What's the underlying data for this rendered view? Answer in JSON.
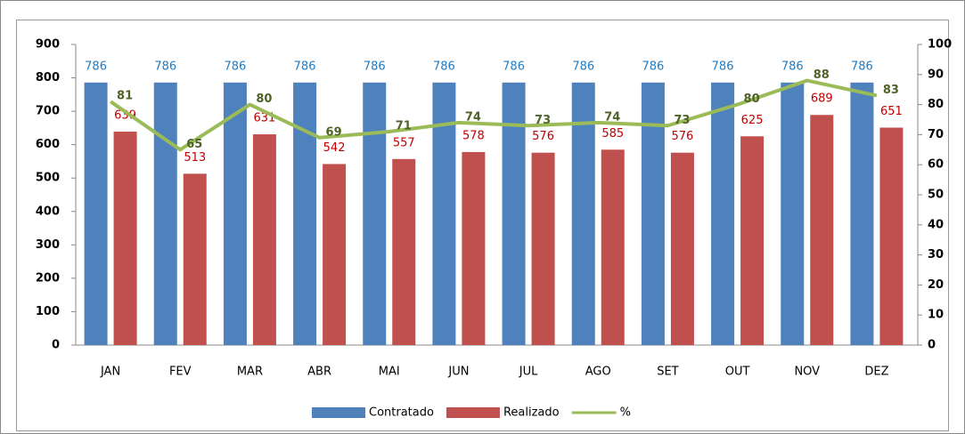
{
  "chart_data": {
    "type": "bar",
    "categories": [
      "JAN",
      "FEV",
      "MAR",
      "ABR",
      "MAI",
      "JUN",
      "JUL",
      "AGO",
      "SET",
      "OUT",
      "NOV",
      "DEZ"
    ],
    "series": [
      {
        "name": "Contratado",
        "color": "#4f81bd",
        "values": [
          786,
          786,
          786,
          786,
          786,
          786,
          786,
          786,
          786,
          786,
          786,
          786
        ]
      },
      {
        "name": "Realizado",
        "color": "#c0504d",
        "values": [
          639,
          513,
          631,
          542,
          557,
          578,
          576,
          585,
          576,
          625,
          689,
          651
        ]
      },
      {
        "name": "%",
        "color": "#9bbb59",
        "type": "line",
        "axis": "y2",
        "values": [
          81,
          65,
          80,
          69,
          71,
          74,
          73,
          74,
          73,
          80,
          88,
          83
        ]
      }
    ],
    "ylim": [
      0,
      900
    ],
    "yticks": [
      0,
      100,
      200,
      300,
      400,
      500,
      600,
      700,
      800,
      900
    ],
    "y2lim": [
      0,
      100
    ],
    "y2ticks": [
      0,
      10,
      20,
      30,
      40,
      50,
      60,
      70,
      80,
      90,
      100
    ]
  }
}
